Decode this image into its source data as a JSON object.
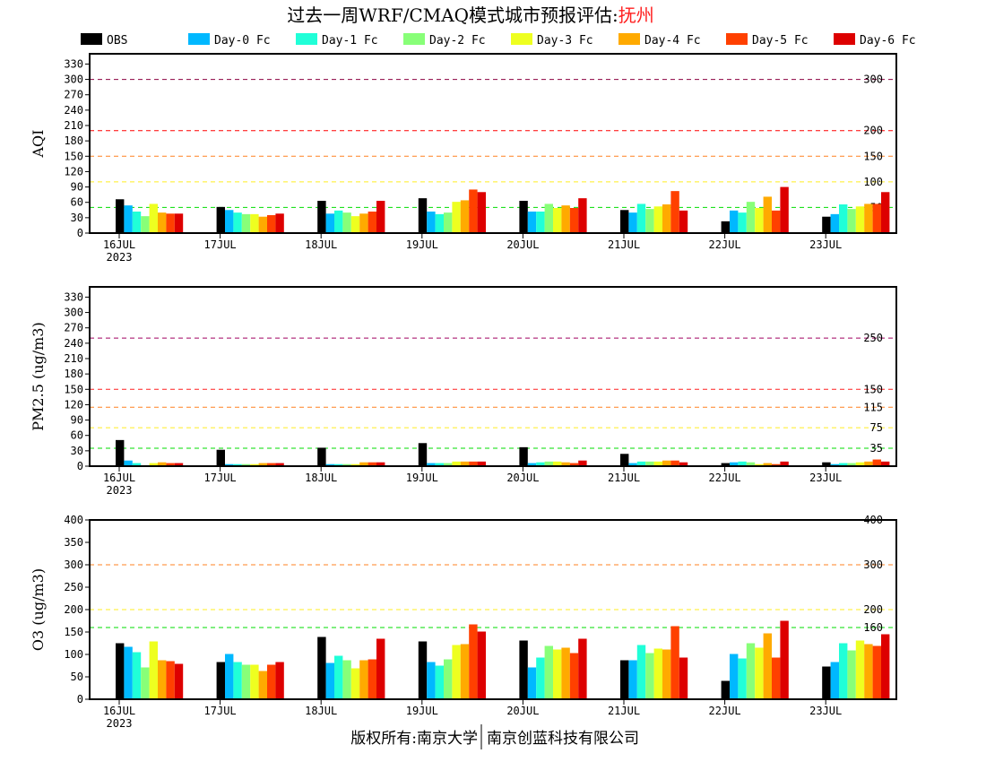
{
  "title": {
    "prefix": "过去一周WRF/CMAQ模式城市预报评估:",
    "city": "抚州",
    "city_color": "#ff2020"
  },
  "footer": {
    "left": "版权所有:南京大学",
    "right": "南京创蓝科技有限公司"
  },
  "legend": [
    {
      "label": "OBS",
      "color": "#000000"
    },
    {
      "label": "Day-0 Fc",
      "color": "#00b8ff"
    },
    {
      "label": "Day-1 Fc",
      "color": "#20ffd8"
    },
    {
      "label": "Day-2 Fc",
      "color": "#88ff78"
    },
    {
      "label": "Day-3 Fc",
      "color": "#eeff20"
    },
    {
      "label": "Day-4 Fc",
      "color": "#ffaa00"
    },
    {
      "label": "Day-5 Fc",
      "color": "#ff4000"
    },
    {
      "label": "Day-6 Fc",
      "color": "#dd0000"
    }
  ],
  "chart_data": [
    {
      "type": "bar",
      "ylabel": "AQI",
      "ylim": [
        0,
        350
      ],
      "yticks": [
        0,
        30,
        60,
        90,
        120,
        150,
        180,
        210,
        240,
        270,
        300,
        330
      ],
      "categories": [
        "16JUL",
        "17JUL",
        "18JUL",
        "19JUL",
        "20JUL",
        "21JUL",
        "22JUL",
        "23JUL"
      ],
      "year_label": "2023",
      "reference_lines": [
        {
          "value": 300,
          "label": "300",
          "color": "#8b0040"
        },
        {
          "value": 200,
          "label": "200",
          "color": "#ff0000"
        },
        {
          "value": 150,
          "label": "150",
          "color": "#ff8020"
        },
        {
          "value": 100,
          "label": "100",
          "color": "#ffee20"
        },
        {
          "value": 50,
          "label": "50",
          "color": "#00dd00"
        }
      ],
      "series": [
        {
          "name": "OBS",
          "values": [
            66,
            51,
            63,
            68,
            63,
            45,
            23,
            32
          ]
        },
        {
          "name": "Day-0 Fc",
          "values": [
            54,
            45,
            38,
            42,
            42,
            40,
            44,
            37
          ]
        },
        {
          "name": "Day-1 Fc",
          "values": [
            42,
            40,
            44,
            37,
            42,
            57,
            40,
            56
          ]
        },
        {
          "name": "Day-2 Fc",
          "values": [
            33,
            37,
            40,
            40,
            57,
            47,
            61,
            47
          ]
        },
        {
          "name": "Day-3 Fc",
          "values": [
            57,
            37,
            33,
            61,
            49,
            52,
            49,
            52
          ]
        },
        {
          "name": "Day-4 Fc",
          "values": [
            40,
            32,
            38,
            64,
            54,
            56,
            71,
            57
          ]
        },
        {
          "name": "Day-5 Fc",
          "values": [
            38,
            35,
            42,
            85,
            49,
            82,
            44,
            57
          ]
        },
        {
          "name": "Day-6 Fc",
          "values": [
            38,
            38,
            63,
            80,
            68,
            44,
            90,
            80
          ]
        }
      ]
    },
    {
      "type": "bar",
      "ylabel": "PM2.5 (ug/m3)",
      "ylim": [
        0,
        350
      ],
      "yticks": [
        0,
        30,
        60,
        90,
        120,
        150,
        180,
        210,
        240,
        270,
        300,
        330
      ],
      "categories": [
        "16JUL",
        "17JUL",
        "18JUL",
        "19JUL",
        "20JUL",
        "21JUL",
        "22JUL",
        "23JUL"
      ],
      "year_label": "2023",
      "reference_lines": [
        {
          "value": 250,
          "label": "250",
          "color": "#a00060"
        },
        {
          "value": 150,
          "label": "150",
          "color": "#ff2020"
        },
        {
          "value": 115,
          "label": "115",
          "color": "#ff8020"
        },
        {
          "value": 75,
          "label": "75",
          "color": "#ffee20"
        },
        {
          "value": 35,
          "label": "35",
          "color": "#00dd00"
        }
      ],
      "series": [
        {
          "name": "OBS",
          "values": [
            51,
            32,
            36,
            45,
            37,
            24,
            6,
            7.5
          ]
        },
        {
          "name": "Day-0 Fc",
          "values": [
            11,
            4,
            4,
            6,
            6,
            6,
            7.5,
            4
          ]
        },
        {
          "name": "Day-1 Fc",
          "values": [
            6,
            4,
            4,
            6,
            7.5,
            9,
            9,
            6
          ]
        },
        {
          "name": "Day-2 Fc",
          "values": [
            2,
            4,
            4,
            6,
            9,
            9,
            7.5,
            6
          ]
        },
        {
          "name": "Day-3 Fc",
          "values": [
            6,
            4,
            4,
            9,
            9,
            9,
            4,
            7.5
          ]
        },
        {
          "name": "Day-4 Fc",
          "values": [
            7.5,
            6,
            7.5,
            9,
            7.5,
            11,
            6,
            9
          ]
        },
        {
          "name": "Day-5 Fc",
          "values": [
            6,
            6,
            7.5,
            9,
            6,
            11,
            4,
            13
          ]
        },
        {
          "name": "Day-6 Fc",
          "values": [
            6,
            6,
            7.5,
            9,
            11,
            7.5,
            9,
            9
          ]
        }
      ]
    },
    {
      "type": "bar",
      "ylabel": "O3 (ug/m3)",
      "ylim": [
        0,
        400
      ],
      "yticks": [
        0,
        50,
        100,
        150,
        200,
        250,
        300,
        350,
        400
      ],
      "categories": [
        "16JUL",
        "17JUL",
        "18JUL",
        "19JUL",
        "20JUL",
        "21JUL",
        "22JUL",
        "23JUL"
      ],
      "year_label": "2023",
      "reference_lines": [
        {
          "value": 400,
          "label": "400",
          "color": "#dd0000"
        },
        {
          "value": 300,
          "label": "300",
          "color": "#ff8020"
        },
        {
          "value": 200,
          "label": "200",
          "color": "#ffee20"
        },
        {
          "value": 160,
          "label": "160",
          "color": "#00dd00"
        }
      ],
      "series": [
        {
          "name": "OBS",
          "values": [
            125,
            83,
            139,
            129,
            131,
            87,
            41,
            73
          ]
        },
        {
          "name": "Day-0 Fc",
          "values": [
            117,
            101,
            81,
            83,
            71,
            87,
            101,
            83
          ]
        },
        {
          "name": "Day-1 Fc",
          "values": [
            105,
            83,
            97,
            75,
            93,
            121,
            91,
            125
          ]
        },
        {
          "name": "Day-2 Fc",
          "values": [
            71,
            77,
            87,
            89,
            119,
            103,
            125,
            109
          ]
        },
        {
          "name": "Day-3 Fc",
          "values": [
            129,
            77,
            69,
            121,
            111,
            113,
            115,
            131
          ]
        },
        {
          "name": "Day-4 Fc",
          "values": [
            87,
            63,
            87,
            123,
            115,
            111,
            147,
            123
          ]
        },
        {
          "name": "Day-5 Fc",
          "values": [
            85,
            77,
            89,
            167,
            103,
            163,
            93,
            119
          ]
        },
        {
          "name": "Day-6 Fc",
          "values": [
            79,
            83,
            135,
            151,
            135,
            93,
            175,
            145
          ]
        }
      ]
    }
  ]
}
